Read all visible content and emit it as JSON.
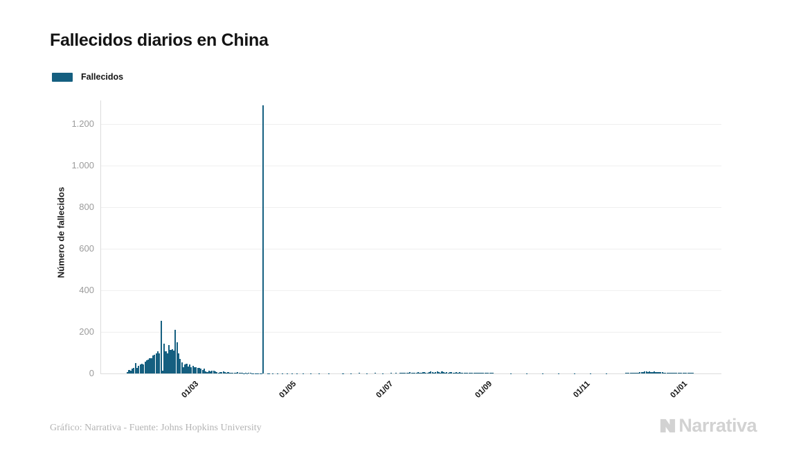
{
  "header": {
    "title": "Fallecidos diarios en China"
  },
  "legend": {
    "label": "Fallecidos",
    "swatch_color": "#155f80"
  },
  "footer": {
    "credit": "Gráfico: Narrativa - Fuente: Johns Hopkins University",
    "brand": "Narrativa"
  },
  "colors": {
    "bar": "#155f80",
    "grid": "#efefef",
    "axis": "#dcdcdc",
    "ytick_text": "#9b9b9b",
    "xtick_text": "#141414",
    "brand_gray": "#d2d2d2"
  },
  "chart_data": {
    "type": "bar",
    "title": "Fallecidos diarios en China",
    "xlabel": "",
    "ylabel": "Número de fallecidos",
    "series_name": "Fallecidos",
    "bar_color": "#155f80",
    "grid": true,
    "legend_position": "top-left",
    "ylim": [
      0,
      1313
    ],
    "yticks": [
      {
        "value": 0,
        "label": "0"
      },
      {
        "value": 200,
        "label": "200"
      },
      {
        "value": 400,
        "label": "400"
      },
      {
        "value": 600,
        "label": "600"
      },
      {
        "value": 800,
        "label": "800"
      },
      {
        "value": 1000,
        "label": "1.000"
      },
      {
        "value": 1200,
        "label": "1.200"
      }
    ],
    "start_date": "2020-01-23",
    "x_range_day_offsets": [
      -17,
      372
    ],
    "xticks": [
      {
        "offset": 38,
        "label": "01/03"
      },
      {
        "offset": 99,
        "label": "01/05"
      },
      {
        "offset": 160,
        "label": "01/07"
      },
      {
        "offset": 222,
        "label": "01/09"
      },
      {
        "offset": 283,
        "label": "01/11"
      },
      {
        "offset": 344,
        "label": "01/01"
      }
    ],
    "max_value": 1290,
    "points_format": "[day_offset_from_start_date, deaths]",
    "points": [
      [
        0,
        8
      ],
      [
        1,
        16
      ],
      [
        2,
        15
      ],
      [
        3,
        24
      ],
      [
        4,
        26
      ],
      [
        5,
        49
      ],
      [
        6,
        26
      ],
      [
        7,
        38
      ],
      [
        8,
        43
      ],
      [
        9,
        46
      ],
      [
        10,
        45
      ],
      [
        11,
        57
      ],
      [
        12,
        64
      ],
      [
        13,
        66
      ],
      [
        14,
        73
      ],
      [
        15,
        73
      ],
      [
        16,
        86
      ],
      [
        17,
        89
      ],
      [
        18,
        97
      ],
      [
        19,
        108
      ],
      [
        20,
        97
      ],
      [
        21,
        254
      ],
      [
        22,
        13
      ],
      [
        23,
        143
      ],
      [
        24,
        106
      ],
      [
        25,
        98
      ],
      [
        26,
        136
      ],
      [
        27,
        115
      ],
      [
        28,
        118
      ],
      [
        29,
        109
      ],
      [
        30,
        210
      ],
      [
        31,
        150
      ],
      [
        32,
        97
      ],
      [
        33,
        71
      ],
      [
        34,
        52
      ],
      [
        35,
        29
      ],
      [
        36,
        44
      ],
      [
        37,
        47
      ],
      [
        38,
        35
      ],
      [
        39,
        42
      ],
      [
        40,
        31
      ],
      [
        41,
        38
      ],
      [
        42,
        31
      ],
      [
        43,
        30
      ],
      [
        44,
        28
      ],
      [
        45,
        27
      ],
      [
        46,
        22
      ],
      [
        47,
        17
      ],
      [
        48,
        22
      ],
      [
        49,
        11
      ],
      [
        50,
        7
      ],
      [
        51,
        13
      ],
      [
        52,
        10
      ],
      [
        53,
        14
      ],
      [
        54,
        13
      ],
      [
        55,
        11
      ],
      [
        56,
        8
      ],
      [
        57,
        3
      ],
      [
        58,
        7
      ],
      [
        59,
        6
      ],
      [
        60,
        9
      ],
      [
        61,
        7
      ],
      [
        62,
        4
      ],
      [
        63,
        6
      ],
      [
        64,
        5
      ],
      [
        65,
        5
      ],
      [
        66,
        3
      ],
      [
        67,
        4
      ],
      [
        68,
        2
      ],
      [
        69,
        7
      ],
      [
        70,
        4
      ],
      [
        71,
        4
      ],
      [
        72,
        3
      ],
      [
        73,
        1
      ],
      [
        74,
        2
      ],
      [
        75,
        1
      ],
      [
        76,
        2
      ],
      [
        77,
        2
      ],
      [
        78,
        1
      ],
      [
        79,
        1
      ],
      [
        80,
        1
      ],
      [
        81,
        1
      ],
      [
        82,
        1
      ],
      [
        83,
        1
      ],
      [
        84,
        1
      ],
      [
        85,
        1290
      ],
      [
        88,
        1
      ],
      [
        89,
        1
      ],
      [
        91,
        1
      ],
      [
        94,
        1
      ],
      [
        97,
        1
      ],
      [
        100,
        1
      ],
      [
        103,
        1
      ],
      [
        106,
        1
      ],
      [
        110,
        1
      ],
      [
        115,
        1
      ],
      [
        120,
        1
      ],
      [
        126,
        1
      ],
      [
        135,
        1
      ],
      [
        140,
        1
      ],
      [
        145,
        2
      ],
      [
        150,
        1
      ],
      [
        155,
        2
      ],
      [
        160,
        1
      ],
      [
        165,
        2
      ],
      [
        168,
        2
      ],
      [
        171,
        3
      ],
      [
        172,
        4
      ],
      [
        173,
        2
      ],
      [
        174,
        5
      ],
      [
        175,
        3
      ],
      [
        176,
        4
      ],
      [
        177,
        6
      ],
      [
        178,
        3
      ],
      [
        179,
        2
      ],
      [
        180,
        4
      ],
      [
        181,
        5
      ],
      [
        182,
        7
      ],
      [
        183,
        4
      ],
      [
        184,
        3
      ],
      [
        185,
        6
      ],
      [
        186,
        8
      ],
      [
        187,
        5
      ],
      [
        188,
        4
      ],
      [
        189,
        7
      ],
      [
        190,
        9
      ],
      [
        191,
        6
      ],
      [
        192,
        5
      ],
      [
        193,
        8
      ],
      [
        194,
        10
      ],
      [
        195,
        7
      ],
      [
        196,
        5
      ],
      [
        197,
        9
      ],
      [
        198,
        6
      ],
      [
        199,
        4
      ],
      [
        200,
        7
      ],
      [
        201,
        5
      ],
      [
        202,
        8
      ],
      [
        203,
        6
      ],
      [
        204,
        4
      ],
      [
        205,
        5
      ],
      [
        206,
        7
      ],
      [
        207,
        4
      ],
      [
        208,
        6
      ],
      [
        209,
        3
      ],
      [
        210,
        5
      ],
      [
        211,
        4
      ],
      [
        212,
        2
      ],
      [
        213,
        3
      ],
      [
        214,
        5
      ],
      [
        215,
        3
      ],
      [
        216,
        4
      ],
      [
        217,
        2
      ],
      [
        218,
        3
      ],
      [
        219,
        2
      ],
      [
        220,
        4
      ],
      [
        221,
        3
      ],
      [
        222,
        2
      ],
      [
        223,
        3
      ],
      [
        224,
        2
      ],
      [
        225,
        2
      ],
      [
        226,
        3
      ],
      [
        227,
        2
      ],
      [
        228,
        2
      ],
      [
        229,
        2
      ],
      [
        240,
        1
      ],
      [
        250,
        1
      ],
      [
        260,
        1
      ],
      [
        270,
        1
      ],
      [
        280,
        1
      ],
      [
        290,
        1
      ],
      [
        300,
        1
      ],
      [
        312,
        2
      ],
      [
        313,
        3
      ],
      [
        314,
        2
      ],
      [
        315,
        3
      ],
      [
        316,
        2
      ],
      [
        317,
        3
      ],
      [
        318,
        2
      ],
      [
        319,
        3
      ],
      [
        320,
        4
      ],
      [
        321,
        6
      ],
      [
        322,
        8
      ],
      [
        323,
        7
      ],
      [
        324,
        9
      ],
      [
        325,
        10
      ],
      [
        326,
        8
      ],
      [
        327,
        9
      ],
      [
        328,
        7
      ],
      [
        329,
        8
      ],
      [
        330,
        10
      ],
      [
        331,
        7
      ],
      [
        332,
        8
      ],
      [
        333,
        6
      ],
      [
        334,
        7
      ],
      [
        335,
        6
      ],
      [
        336,
        5
      ],
      [
        337,
        4
      ],
      [
        338,
        5
      ],
      [
        339,
        3
      ],
      [
        340,
        4
      ],
      [
        341,
        3
      ],
      [
        342,
        4
      ],
      [
        343,
        2
      ],
      [
        344,
        3
      ],
      [
        345,
        3
      ],
      [
        346,
        2
      ],
      [
        347,
        3
      ],
      [
        348,
        2
      ],
      [
        349,
        2
      ],
      [
        350,
        2
      ],
      [
        351,
        3
      ],
      [
        352,
        2
      ],
      [
        353,
        2
      ],
      [
        354,
        2
      ]
    ]
  }
}
